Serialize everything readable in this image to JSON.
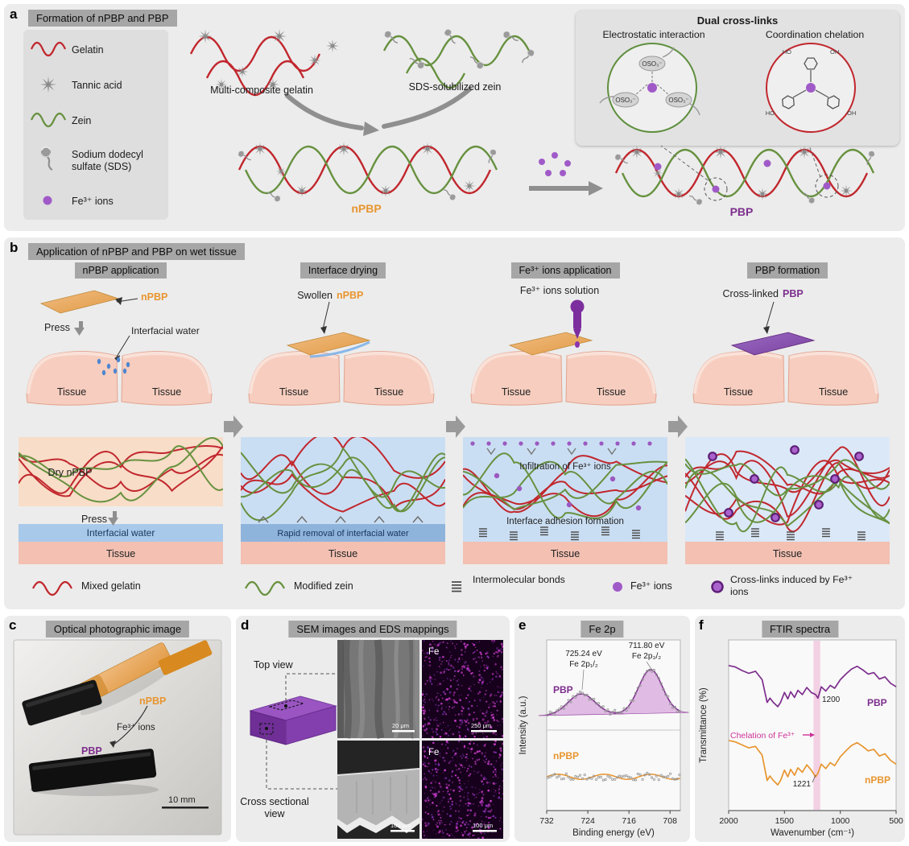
{
  "colors": {
    "gelatin_red": "#c1272d",
    "zein_green": "#67913f",
    "fe_ion_purple": "#a05ac8",
    "npbp_orange": "#e8952f",
    "pbp_purple": "#7d2e8d",
    "panel_gray": "#ececec",
    "header_gray": "#a6a6a6",
    "tissue_pink": "#f6cdbe",
    "water_blue": "#a9c9ea"
  },
  "panel_a": {
    "letter": "a",
    "title": "Formation of nPBP and PBP",
    "legend": [
      {
        "icon": "gelatin-wave-icon",
        "label": "Gelatin"
      },
      {
        "icon": "tannic-acid-star-icon",
        "label": "Tannic acid"
      },
      {
        "icon": "zein-wave-icon",
        "label": "Zein"
      },
      {
        "icon": "sds-icon",
        "label": "Sodium dodecyl sulfate (SDS)"
      },
      {
        "icon": "fe-ion-icon",
        "label": "Fe³⁺ ions"
      }
    ],
    "multi_composite_gelatin": "Multi-composite gelatin",
    "sds_solubilized_zein": "SDS-solubilized zein",
    "npbp": "nPBP",
    "pbp": "PBP",
    "inset": {
      "title": "Dual cross-links",
      "electrostatic": "Electrostatic interaction",
      "coordination": "Coordination chelation",
      "oso3": "OSO₃⁻",
      "ho": "HO",
      "oh": "OH"
    }
  },
  "panel_b": {
    "letter": "b",
    "title": "Application of nPBP and PBP on wet tissue",
    "steps": [
      {
        "title": "nPBP application"
      },
      {
        "title": "Interface drying"
      },
      {
        "title": "Fe³⁺ ions application"
      },
      {
        "title": "PBP formation"
      }
    ],
    "labels": {
      "npbp": "nPBP",
      "pbp": "PBP",
      "press": "Press",
      "interfacial_water": "Interfacial water",
      "tissue": "Tissue",
      "dry_npbp": "Dry nPBP",
      "swollen": "Swollen",
      "fe_solution": "Fe³⁺ ions solution",
      "crosslinked": "Cross-linked",
      "rapid_removal": "Rapid removal of interfacial water",
      "infiltration": "Infiltration of Fe³⁺ ions",
      "adhesion": "Interface adhesion formation"
    },
    "legend": [
      {
        "icon": "mixed-gelatin-wave-icon",
        "label": "Mixed gelatin"
      },
      {
        "icon": "modified-zein-wave-icon",
        "label": "Modified zein"
      },
      {
        "icon": "intermolecular-bonds-icon",
        "label": "Intermolecular bonds"
      },
      {
        "icon": "fe-ion-icon",
        "label": "Fe³⁺ ions"
      },
      {
        "icon": "crosslink-icon",
        "label": "Cross-links induced by Fe³⁺ ions"
      }
    ]
  },
  "panel_c": {
    "letter": "c",
    "title": "Optical photographic image",
    "npbp": "nPBP",
    "pbp": "PBP",
    "fe_ions": "Fe³⁺ ions",
    "scale_bar": "10 mm"
  },
  "panel_d": {
    "letter": "d",
    "title": "SEM images and EDS mappings",
    "top_view": "Top view",
    "cross_view": "Cross sectional view",
    "eds_element_top": "Fe",
    "eds_element_bottom": "Fe",
    "scale_sem_top": "20 μm",
    "scale_eds_top": "250 μm",
    "scale_sem_bottom": "100 μm",
    "scale_eds_bottom": "100 μm"
  },
  "panel_e": {
    "letter": "e"
  },
  "panel_f": {
    "letter": "f"
  },
  "chart_data": [
    {
      "id": "fe2p_xps",
      "type": "line",
      "title": "Fe 2p",
      "xlabel": "Binding energy (eV)",
      "ylabel": "Intensity (a.u.)",
      "x_range": [
        732,
        706
      ],
      "x_ticks": [
        "732",
        "724",
        "716",
        "708"
      ],
      "legend_position": "inside-left",
      "grid": false,
      "series": [
        {
          "name": "PBP",
          "color": "#7d2e8d",
          "baseline": 0.12,
          "fit_peaks": [
            {
              "center": 725.24,
              "sigma": 2.6,
              "height": 0.38,
              "label": "Fe 2p₁/₂",
              "energy_label": "725.24 eV"
            },
            {
              "center": 711.8,
              "sigma": 2.3,
              "height": 0.8,
              "label": "Fe 2p₃/₂",
              "energy_label": "711.80 eV"
            }
          ]
        },
        {
          "name": "nPBP",
          "color": "#e8952f",
          "baseline": 0.5,
          "fit_peaks": []
        }
      ]
    },
    {
      "id": "ftir",
      "type": "line",
      "title": "FTIR spectra",
      "xlabel": "Wavenumber (cm⁻¹)",
      "ylabel": "Transmittance (%)",
      "x_range": [
        2000,
        500
      ],
      "x_ticks": [
        "2000",
        "1500",
        "1000",
        "500"
      ],
      "highlight_band_center": 1210,
      "annotation": "Chelation of Fe³⁺",
      "grid": false,
      "series": [
        {
          "name": "PBP",
          "color": "#7d2e8d",
          "marked_wavenumber": "1200",
          "x": [
            2000,
            1940,
            1880,
            1820,
            1760,
            1700,
            1655,
            1630,
            1600,
            1560,
            1535,
            1500,
            1470,
            1445,
            1410,
            1380,
            1340,
            1300,
            1260,
            1221,
            1200,
            1170,
            1130,
            1090,
            1050,
            1000,
            950,
            900,
            850,
            800,
            750,
            700,
            650,
            600,
            550,
            500
          ],
          "t": [
            0.82,
            0.8,
            0.75,
            0.71,
            0.74,
            0.62,
            0.3,
            0.36,
            0.3,
            0.24,
            0.3,
            0.44,
            0.35,
            0.45,
            0.37,
            0.47,
            0.41,
            0.51,
            0.44,
            0.41,
            0.36,
            0.52,
            0.46,
            0.54,
            0.5,
            0.62,
            0.7,
            0.77,
            0.81,
            0.76,
            0.7,
            0.72,
            0.63,
            0.66,
            0.57,
            0.52
          ]
        },
        {
          "name": "nPBP",
          "color": "#e8952f",
          "marked_wavenumber": "1221",
          "x": [
            2000,
            1940,
            1880,
            1820,
            1760,
            1700,
            1655,
            1630,
            1600,
            1560,
            1535,
            1500,
            1470,
            1445,
            1410,
            1380,
            1340,
            1300,
            1260,
            1221,
            1200,
            1170,
            1130,
            1090,
            1050,
            1000,
            950,
            900,
            850,
            800,
            750,
            700,
            650,
            600,
            550,
            500
          ],
          "t": [
            0.86,
            0.84,
            0.8,
            0.76,
            0.78,
            0.66,
            0.32,
            0.38,
            0.32,
            0.26,
            0.32,
            0.46,
            0.37,
            0.47,
            0.39,
            0.49,
            0.43,
            0.53,
            0.46,
            0.37,
            0.42,
            0.54,
            0.48,
            0.56,
            0.52,
            0.64,
            0.72,
            0.79,
            0.83,
            0.78,
            0.72,
            0.74,
            0.65,
            0.68,
            0.59,
            0.54
          ]
        }
      ]
    }
  ]
}
